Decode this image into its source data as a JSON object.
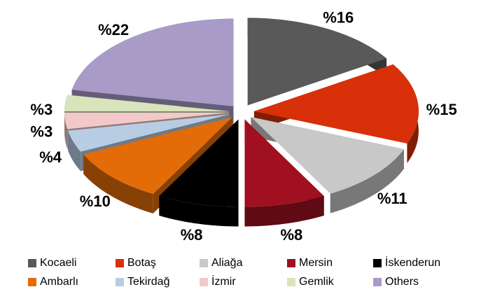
{
  "chart_data": {
    "type": "pie3d",
    "categories": [
      "Kocaeli",
      "Botaş",
      "Aliağa",
      "Mersin",
      "İskenderun",
      "Ambarlı",
      "Tekirdağ",
      "İzmir",
      "Gemlik",
      "Others"
    ],
    "values": [
      16,
      15,
      11,
      8,
      8,
      10,
      4,
      3,
      3,
      22
    ],
    "value_labels": [
      "%16",
      "%15",
      "%11",
      "%8",
      "%8",
      "%10",
      "%4",
      "%3",
      "%3",
      "%22"
    ],
    "colors": [
      "#595959",
      "#d83008",
      "#c8c8c8",
      "#a01020",
      "#000000",
      "#e36c09",
      "#b8cce4",
      "#f2c8c8",
      "#d8e4bc",
      "#a99bc8"
    ],
    "legend": "bottom"
  }
}
